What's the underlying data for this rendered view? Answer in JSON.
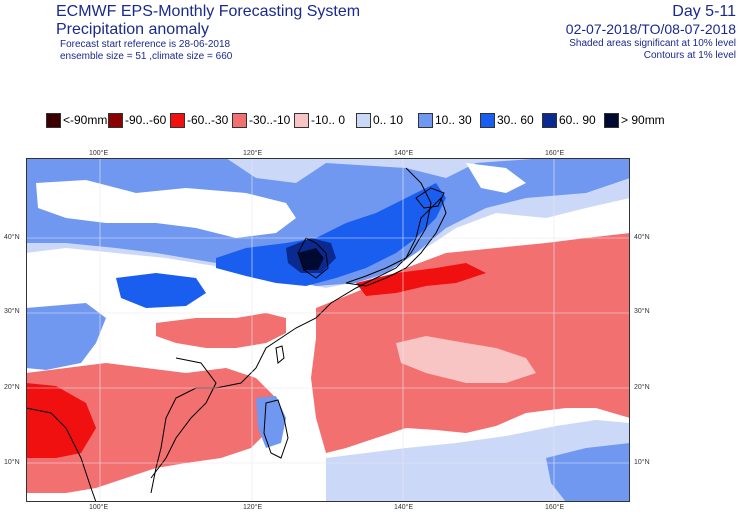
{
  "header": {
    "title": "ECMWF EPS-Monthly Forecasting System",
    "subtitle": "Precipitation anomaly",
    "forecast_ref": "Forecast start reference is 28-06-2018",
    "ensemble": "ensemble size = 51  ,climate size = 660",
    "day_range": "Day 5-11",
    "date_range": "02-07-2018/TO/08-07-2018",
    "shaded_note": "Shaded areas significant at 10% level",
    "contours_note": "Contours at 1% level"
  },
  "legend": [
    {
      "label": "<-90mm",
      "color": "#3a0000"
    },
    {
      "label": "-90..-60",
      "color": "#8b0000"
    },
    {
      "label": "-60..-30",
      "color": "#f01010"
    },
    {
      "label": "-30..-10",
      "color": "#f27070"
    },
    {
      "label": "-10..  0",
      "color": "#f8c4c4"
    },
    {
      "label": "0..  10",
      "color": "#ccd8f8"
    },
    {
      "label": "10..  30",
      "color": "#7098f0"
    },
    {
      "label": "30..  60",
      "color": "#1a5ef0"
    },
    {
      "label": "60..  90",
      "color": "#0a2a90"
    },
    {
      "label": ">  90mm",
      "color": "#000a30"
    }
  ],
  "map": {
    "lon_ticks": [
      "100°E",
      "120°E",
      "140°E",
      "160°E"
    ],
    "lat_ticks": [
      "40°N",
      "30°N",
      "20°N",
      "10°N"
    ]
  }
}
